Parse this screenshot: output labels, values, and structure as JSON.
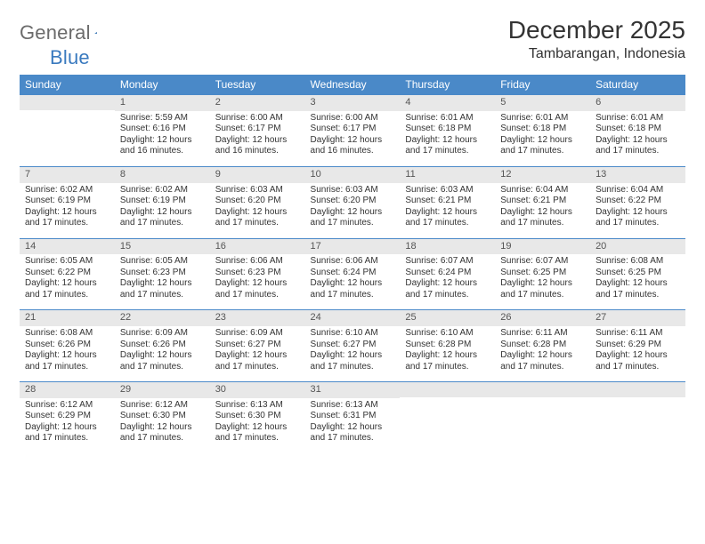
{
  "brand": {
    "part1": "General",
    "part2": "Blue"
  },
  "title": "December 2025",
  "location": "Tambarangan, Indonesia",
  "colors": {
    "header_bg": "#4a89c8",
    "header_text": "#ffffff",
    "daynum_bg": "#e8e8e8",
    "row_border": "#4a89c8",
    "text": "#333333",
    "logo_gray": "#6b6b6b",
    "logo_blue": "#3a7abf"
  },
  "weekdays": [
    "Sunday",
    "Monday",
    "Tuesday",
    "Wednesday",
    "Thursday",
    "Friday",
    "Saturday"
  ],
  "weeks": [
    [
      {
        "blank": true
      },
      {
        "day": "1",
        "sunrise": "Sunrise: 5:59 AM",
        "sunset": "Sunset: 6:16 PM",
        "daylight": "Daylight: 12 hours and 16 minutes."
      },
      {
        "day": "2",
        "sunrise": "Sunrise: 6:00 AM",
        "sunset": "Sunset: 6:17 PM",
        "daylight": "Daylight: 12 hours and 16 minutes."
      },
      {
        "day": "3",
        "sunrise": "Sunrise: 6:00 AM",
        "sunset": "Sunset: 6:17 PM",
        "daylight": "Daylight: 12 hours and 16 minutes."
      },
      {
        "day": "4",
        "sunrise": "Sunrise: 6:01 AM",
        "sunset": "Sunset: 6:18 PM",
        "daylight": "Daylight: 12 hours and 17 minutes."
      },
      {
        "day": "5",
        "sunrise": "Sunrise: 6:01 AM",
        "sunset": "Sunset: 6:18 PM",
        "daylight": "Daylight: 12 hours and 17 minutes."
      },
      {
        "day": "6",
        "sunrise": "Sunrise: 6:01 AM",
        "sunset": "Sunset: 6:18 PM",
        "daylight": "Daylight: 12 hours and 17 minutes."
      }
    ],
    [
      {
        "day": "7",
        "sunrise": "Sunrise: 6:02 AM",
        "sunset": "Sunset: 6:19 PM",
        "daylight": "Daylight: 12 hours and 17 minutes."
      },
      {
        "day": "8",
        "sunrise": "Sunrise: 6:02 AM",
        "sunset": "Sunset: 6:19 PM",
        "daylight": "Daylight: 12 hours and 17 minutes."
      },
      {
        "day": "9",
        "sunrise": "Sunrise: 6:03 AM",
        "sunset": "Sunset: 6:20 PM",
        "daylight": "Daylight: 12 hours and 17 minutes."
      },
      {
        "day": "10",
        "sunrise": "Sunrise: 6:03 AM",
        "sunset": "Sunset: 6:20 PM",
        "daylight": "Daylight: 12 hours and 17 minutes."
      },
      {
        "day": "11",
        "sunrise": "Sunrise: 6:03 AM",
        "sunset": "Sunset: 6:21 PM",
        "daylight": "Daylight: 12 hours and 17 minutes."
      },
      {
        "day": "12",
        "sunrise": "Sunrise: 6:04 AM",
        "sunset": "Sunset: 6:21 PM",
        "daylight": "Daylight: 12 hours and 17 minutes."
      },
      {
        "day": "13",
        "sunrise": "Sunrise: 6:04 AM",
        "sunset": "Sunset: 6:22 PM",
        "daylight": "Daylight: 12 hours and 17 minutes."
      }
    ],
    [
      {
        "day": "14",
        "sunrise": "Sunrise: 6:05 AM",
        "sunset": "Sunset: 6:22 PM",
        "daylight": "Daylight: 12 hours and 17 minutes."
      },
      {
        "day": "15",
        "sunrise": "Sunrise: 6:05 AM",
        "sunset": "Sunset: 6:23 PM",
        "daylight": "Daylight: 12 hours and 17 minutes."
      },
      {
        "day": "16",
        "sunrise": "Sunrise: 6:06 AM",
        "sunset": "Sunset: 6:23 PM",
        "daylight": "Daylight: 12 hours and 17 minutes."
      },
      {
        "day": "17",
        "sunrise": "Sunrise: 6:06 AM",
        "sunset": "Sunset: 6:24 PM",
        "daylight": "Daylight: 12 hours and 17 minutes."
      },
      {
        "day": "18",
        "sunrise": "Sunrise: 6:07 AM",
        "sunset": "Sunset: 6:24 PM",
        "daylight": "Daylight: 12 hours and 17 minutes."
      },
      {
        "day": "19",
        "sunrise": "Sunrise: 6:07 AM",
        "sunset": "Sunset: 6:25 PM",
        "daylight": "Daylight: 12 hours and 17 minutes."
      },
      {
        "day": "20",
        "sunrise": "Sunrise: 6:08 AM",
        "sunset": "Sunset: 6:25 PM",
        "daylight": "Daylight: 12 hours and 17 minutes."
      }
    ],
    [
      {
        "day": "21",
        "sunrise": "Sunrise: 6:08 AM",
        "sunset": "Sunset: 6:26 PM",
        "daylight": "Daylight: 12 hours and 17 minutes."
      },
      {
        "day": "22",
        "sunrise": "Sunrise: 6:09 AM",
        "sunset": "Sunset: 6:26 PM",
        "daylight": "Daylight: 12 hours and 17 minutes."
      },
      {
        "day": "23",
        "sunrise": "Sunrise: 6:09 AM",
        "sunset": "Sunset: 6:27 PM",
        "daylight": "Daylight: 12 hours and 17 minutes."
      },
      {
        "day": "24",
        "sunrise": "Sunrise: 6:10 AM",
        "sunset": "Sunset: 6:27 PM",
        "daylight": "Daylight: 12 hours and 17 minutes."
      },
      {
        "day": "25",
        "sunrise": "Sunrise: 6:10 AM",
        "sunset": "Sunset: 6:28 PM",
        "daylight": "Daylight: 12 hours and 17 minutes."
      },
      {
        "day": "26",
        "sunrise": "Sunrise: 6:11 AM",
        "sunset": "Sunset: 6:28 PM",
        "daylight": "Daylight: 12 hours and 17 minutes."
      },
      {
        "day": "27",
        "sunrise": "Sunrise: 6:11 AM",
        "sunset": "Sunset: 6:29 PM",
        "daylight": "Daylight: 12 hours and 17 minutes."
      }
    ],
    [
      {
        "day": "28",
        "sunrise": "Sunrise: 6:12 AM",
        "sunset": "Sunset: 6:29 PM",
        "daylight": "Daylight: 12 hours and 17 minutes."
      },
      {
        "day": "29",
        "sunrise": "Sunrise: 6:12 AM",
        "sunset": "Sunset: 6:30 PM",
        "daylight": "Daylight: 12 hours and 17 minutes."
      },
      {
        "day": "30",
        "sunrise": "Sunrise: 6:13 AM",
        "sunset": "Sunset: 6:30 PM",
        "daylight": "Daylight: 12 hours and 17 minutes."
      },
      {
        "day": "31",
        "sunrise": "Sunrise: 6:13 AM",
        "sunset": "Sunset: 6:31 PM",
        "daylight": "Daylight: 12 hours and 17 minutes."
      },
      {
        "blank": true
      },
      {
        "blank": true
      },
      {
        "blank": true
      }
    ]
  ]
}
